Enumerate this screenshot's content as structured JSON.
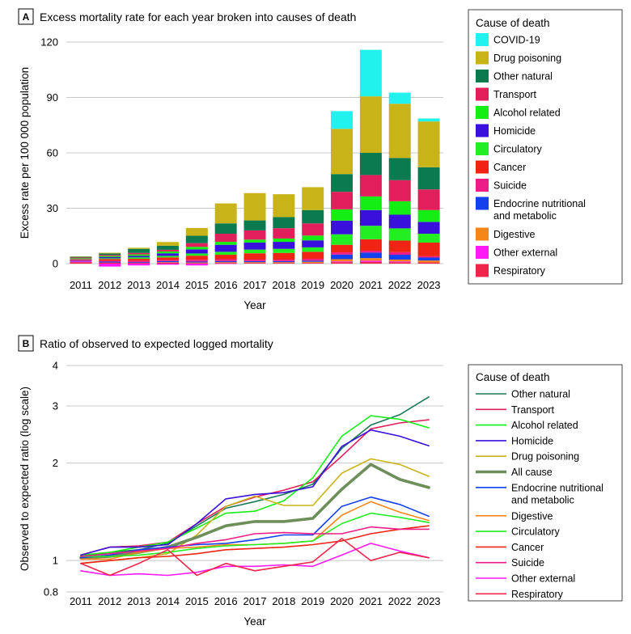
{
  "chart_data": [
    {
      "panel": "A",
      "type": "bar",
      "stacked": true,
      "title": "Excess mortality rate for each year broken into causes of death",
      "xlabel": "Year",
      "ylabel": "Excess rate per 100 000 population",
      "ylim": [
        0,
        120
      ],
      "yticks": [
        "0",
        "30",
        "60",
        "90",
        "120"
      ],
      "grid": true,
      "legend_title": "Cause of death",
      "categories": [
        "2011",
        "2012",
        "2013",
        "2014",
        "2015",
        "2016",
        "2017",
        "2018",
        "2019",
        "2020",
        "2021",
        "2022",
        "2023"
      ],
      "series": [
        {
          "name": "Respiratory",
          "color": "#f0254c",
          "values": [
            0.8,
            0.6,
            0.4,
            0.6,
            0.2,
            0.4,
            0.4,
            0.4,
            0.4,
            0.8,
            1.0,
            0.8,
            0.7
          ]
        },
        {
          "name": "Other external",
          "color": "#ff19f5",
          "values": [
            0.4,
            -1.6,
            -1.0,
            -0.6,
            -1.0,
            -0.2,
            0.0,
            0.0,
            0.0,
            0.4,
            0.6,
            0.4,
            0.0
          ]
        },
        {
          "name": "Digestive",
          "color": "#f58719",
          "values": [
            0.0,
            0.0,
            0.0,
            0.2,
            0.4,
            0.4,
            0.4,
            0.4,
            0.6,
            1.2,
            1.4,
            1.0,
            1.0
          ]
        },
        {
          "name": "Endocrine nutritional and metabolic",
          "color": "#1540ee",
          "values": [
            0.3,
            0.5,
            0.4,
            0.6,
            0.5,
            0.6,
            0.6,
            0.6,
            0.6,
            2.5,
            3.0,
            2.6,
            1.6
          ]
        },
        {
          "name": "Suicide",
          "color": "#ee1c86",
          "values": [
            0.4,
            0.4,
            0.8,
            0.6,
            1.0,
            1.0,
            0.8,
            0.8,
            1.0,
            1.2,
            1.0,
            1.4,
            0.7
          ]
        },
        {
          "name": "Cancer",
          "color": "#f02314",
          "values": [
            0.4,
            1.0,
            1.0,
            1.4,
            2.2,
            2.4,
            3.4,
            3.6,
            3.8,
            4.1,
            6.2,
            6.3,
            7.4
          ]
        },
        {
          "name": "Circulatory",
          "color": "#22ee22",
          "values": [
            0.0,
            0.4,
            0.8,
            0.8,
            1.2,
            1.6,
            2.0,
            2.2,
            2.4,
            5.7,
            7.3,
            6.6,
            4.8
          ]
        },
        {
          "name": "Homicide",
          "color": "#3a10dd",
          "values": [
            0.2,
            0.6,
            0.8,
            1.4,
            2.2,
            3.8,
            3.8,
            3.8,
            3.8,
            7.4,
            8.5,
            7.4,
            6.4
          ]
        },
        {
          "name": "Alcohol related",
          "color": "#15ee15",
          "values": [
            0.4,
            0.6,
            0.8,
            1.0,
            1.4,
            1.6,
            1.6,
            1.8,
            2.6,
            6.1,
            7.4,
            7.3,
            6.4
          ]
        },
        {
          "name": "Transport",
          "color": "#e11f5a",
          "values": [
            0.4,
            0.6,
            0.8,
            0.9,
            2.0,
            4.4,
            5.0,
            5.6,
            6.6,
            9.5,
            11.6,
            11.4,
            11.2
          ]
        },
        {
          "name": "Other natural",
          "color": "#0b7a4f",
          "values": [
            0.4,
            0.8,
            2.2,
            2.2,
            4.0,
            5.6,
            5.4,
            6.0,
            7.2,
            9.6,
            12.0,
            12.0,
            12.0
          ]
        },
        {
          "name": "Drug poisoning",
          "color": "#c8b418",
          "values": [
            0.2,
            0.4,
            0.6,
            2.0,
            4.2,
            10.8,
            14.8,
            12.4,
            12.4,
            24.5,
            30.6,
            29.4,
            24.8
          ]
        },
        {
          "name": "COVID-19",
          "color": "#22f2ee",
          "values": [
            0.0,
            0.0,
            0.0,
            0.0,
            0.0,
            0.0,
            0.0,
            0.0,
            0.0,
            9.6,
            25.2,
            6.0,
            1.6
          ]
        }
      ],
      "legend_order": [
        "COVID-19",
        "Drug poisoning",
        "Other natural",
        "Transport",
        "Alcohol related",
        "Homicide",
        "Circulatory",
        "Cancer",
        "Suicide",
        "Endocrine nutritional and metabolic",
        "Digestive",
        "Other external",
        "Respiratory"
      ],
      "legend_labels": [
        "COVID-19",
        "Drug poisoning",
        "Other natural",
        "Transport",
        "Alcohol related",
        "Homicide",
        "Circulatory",
        "Cancer",
        "Suicide",
        "Endocrine nutritional\nand metabolic",
        "Digestive",
        "Other external",
        "Respiratory"
      ]
    },
    {
      "panel": "B",
      "type": "line",
      "title": "Ratio of observed to expected logged mortality",
      "xlabel": "Year",
      "ylabel": "Observed to expected ratio (log scale)",
      "yscale": "log",
      "ylim": [
        0.8,
        4
      ],
      "yticks": [
        0.8,
        1,
        2,
        3,
        4
      ],
      "ytick_labels": [
        "0.8",
        "1",
        "2",
        "3",
        "4"
      ],
      "grid": true,
      "legend_title": "Cause of death",
      "x": [
        "2011",
        "2012",
        "2013",
        "2014",
        "2015",
        "2016",
        "2017",
        "2018",
        "2019",
        "2020",
        "2021",
        "2022",
        "2023"
      ],
      "series": [
        {
          "name": "Other natural",
          "color": "#1a7a55",
          "width": 1.6,
          "values": [
            1.03,
            1.06,
            1.08,
            1.13,
            1.28,
            1.45,
            1.52,
            1.6,
            1.72,
            2.22,
            2.62,
            2.82,
            3.2
          ]
        },
        {
          "name": "Transport",
          "color": "#e11f5a",
          "width": 1.6,
          "values": [
            1.04,
            1.1,
            1.11,
            1.14,
            1.3,
            1.47,
            1.57,
            1.65,
            1.75,
            2.1,
            2.55,
            2.66,
            2.72
          ]
        },
        {
          "name": "Alcohol related",
          "color": "#15ee15",
          "width": 1.6,
          "values": [
            1.04,
            1.06,
            1.1,
            1.14,
            1.26,
            1.4,
            1.42,
            1.53,
            1.8,
            2.42,
            2.8,
            2.73,
            2.57
          ]
        },
        {
          "name": "Homicide",
          "color": "#3a10dd",
          "width": 1.6,
          "values": [
            1.04,
            1.1,
            1.1,
            1.12,
            1.3,
            1.55,
            1.6,
            1.62,
            1.69,
            2.25,
            2.53,
            2.42,
            2.26
          ]
        },
        {
          "name": "Drug poisoning",
          "color": "#c8b418",
          "width": 1.6,
          "values": [
            0.98,
            1.0,
            1.02,
            1.05,
            1.2,
            1.47,
            1.58,
            1.48,
            1.48,
            1.86,
            2.06,
            1.98,
            1.82
          ]
        },
        {
          "name": "All cause",
          "color": "#6e8e5a",
          "width": 3.6,
          "values": [
            1.02,
            1.03,
            1.06,
            1.1,
            1.18,
            1.28,
            1.32,
            1.32,
            1.35,
            1.66,
            1.98,
            1.78,
            1.68
          ]
        },
        {
          "name": "Endocrine nutritional and metabolic",
          "color": "#1540ee",
          "width": 1.6,
          "values": [
            1.02,
            1.04,
            1.08,
            1.1,
            1.12,
            1.13,
            1.16,
            1.2,
            1.2,
            1.47,
            1.57,
            1.49,
            1.37
          ]
        },
        {
          "name": "Digestive",
          "color": "#f58719",
          "width": 1.6,
          "values": [
            1.01,
            1.01,
            1.06,
            1.09,
            1.1,
            1.12,
            1.12,
            1.13,
            1.15,
            1.38,
            1.52,
            1.41,
            1.33
          ]
        },
        {
          "name": "Circulatory",
          "color": "#22ee22",
          "width": 1.6,
          "values": [
            1.03,
            1.03,
            1.04,
            1.06,
            1.09,
            1.11,
            1.12,
            1.13,
            1.15,
            1.3,
            1.4,
            1.36,
            1.31
          ]
        },
        {
          "name": "Cancer",
          "color": "#f02314",
          "width": 1.6,
          "values": [
            0.98,
            1.0,
            1.02,
            1.03,
            1.05,
            1.08,
            1.09,
            1.1,
            1.12,
            1.15,
            1.21,
            1.25,
            1.28
          ]
        },
        {
          "name": "Suicide",
          "color": "#ee1c86",
          "width": 1.6,
          "values": [
            1.03,
            1.05,
            1.07,
            1.09,
            1.13,
            1.16,
            1.21,
            1.22,
            1.21,
            1.21,
            1.27,
            1.25,
            1.25
          ]
        },
        {
          "name": "Other external",
          "color": "#ff19f5",
          "width": 1.6,
          "values": [
            0.93,
            0.9,
            0.91,
            0.9,
            0.92,
            0.96,
            0.96,
            0.97,
            0.96,
            1.04,
            1.13,
            1.07,
            1.02
          ]
        },
        {
          "name": "Respiratory",
          "color": "#f0254c",
          "width": 1.6,
          "values": [
            0.98,
            0.9,
            0.98,
            1.08,
            0.9,
            0.98,
            0.93,
            0.96,
            0.99,
            1.17,
            1.0,
            1.06,
            1.02
          ]
        }
      ],
      "legend_labels": [
        "Other natural",
        "Transport",
        "Alcohol related",
        "Homicide",
        "Drug poisoning",
        "All cause",
        "Endocrine nutritional\nand metabolic",
        "Digestive",
        "Circulatory",
        "Cancer",
        "Suicide",
        "Other external",
        "Respiratory"
      ]
    }
  ],
  "panel_a": {
    "badge": "A"
  },
  "panel_b": {
    "badge": "B"
  }
}
